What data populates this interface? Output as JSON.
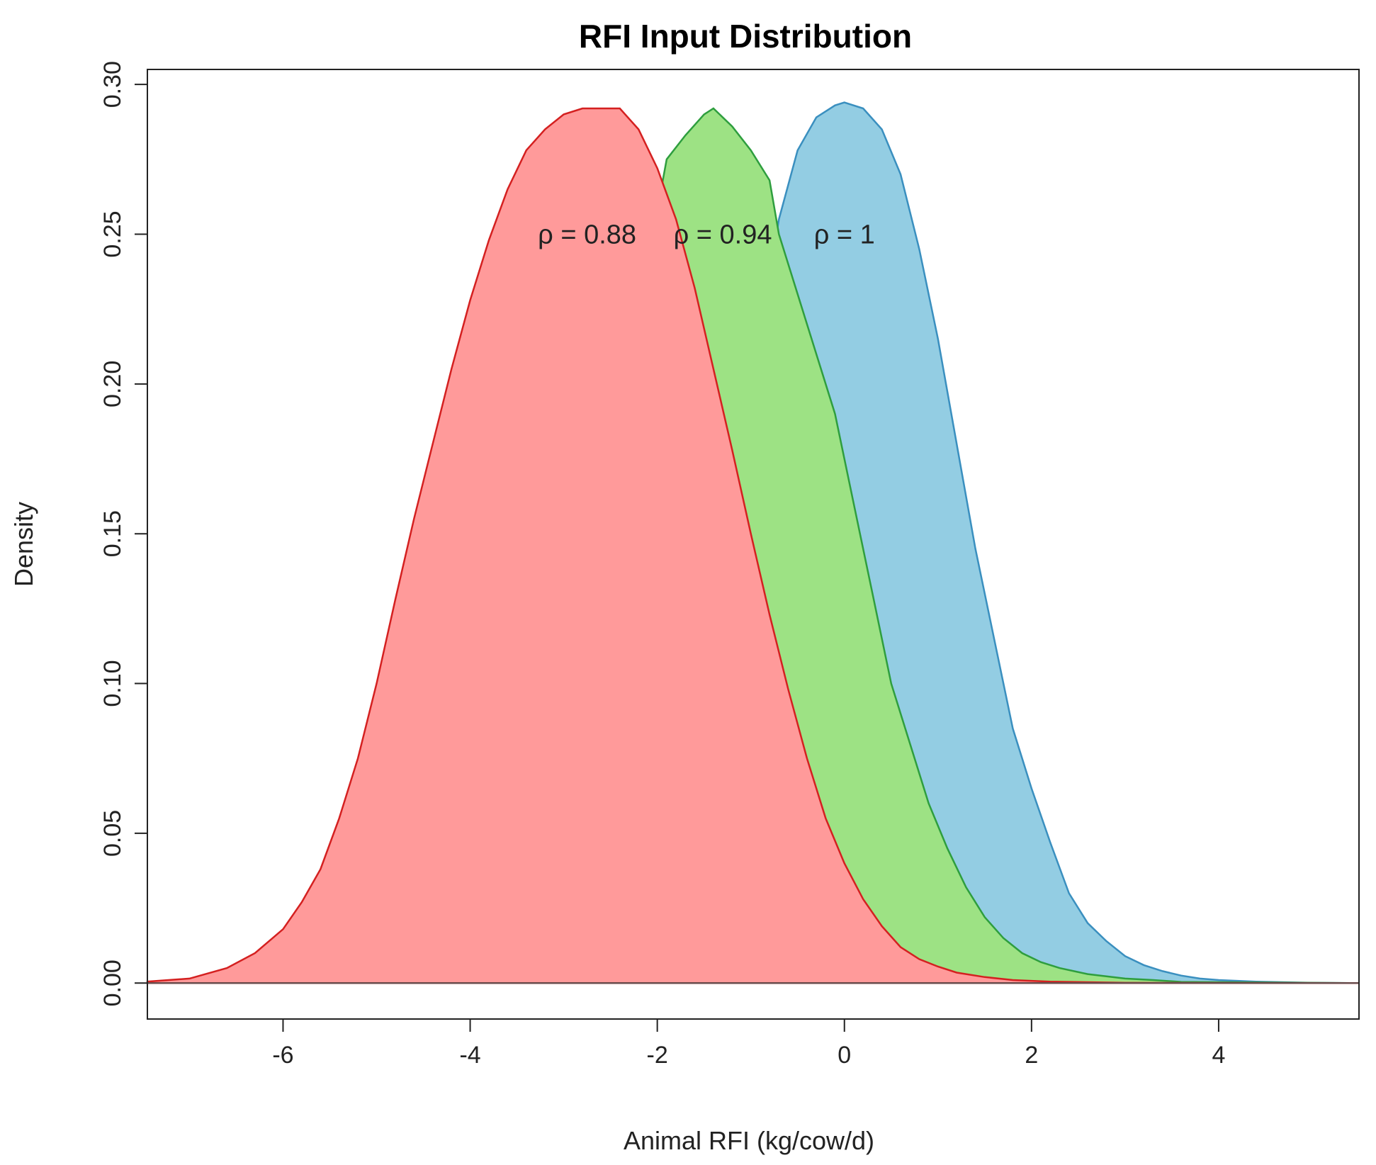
{
  "chart_data": {
    "type": "area",
    "title": "RFI Input Distribution",
    "xlabel": "Animal RFI (kg/cow/d)",
    "ylabel": "Density",
    "xlim": [
      -7.45,
      5.5
    ],
    "ylim": [
      -0.012,
      0.305
    ],
    "xticks": [
      -6,
      -4,
      -2,
      0,
      2,
      4
    ],
    "xtick_labels": [
      "-6",
      "-4",
      "-2",
      "0",
      "2",
      "4"
    ],
    "yticks": [
      0.0,
      0.05,
      0.1,
      0.15,
      0.2,
      0.25,
      0.3
    ],
    "ytick_labels": [
      "0.00",
      "0.05",
      "0.10",
      "0.15",
      "0.20",
      "0.25",
      "0.30"
    ],
    "baseline": 0,
    "series": [
      {
        "name": "blue",
        "fill": "#93CDE3",
        "stroke": "#3A8FBF",
        "points": [
          [
            -7.45,
            0
          ],
          [
            -2,
            0
          ],
          [
            -0.7,
            0.255
          ],
          [
            -0.5,
            0.278
          ],
          [
            -0.3,
            0.289
          ],
          [
            -0.1,
            0.293
          ],
          [
            0,
            0.294
          ],
          [
            0.2,
            0.292
          ],
          [
            0.4,
            0.285
          ],
          [
            0.6,
            0.27
          ],
          [
            0.8,
            0.245
          ],
          [
            1.0,
            0.215
          ],
          [
            1.2,
            0.18
          ],
          [
            1.4,
            0.145
          ],
          [
            1.6,
            0.115
          ],
          [
            1.8,
            0.085
          ],
          [
            2.0,
            0.065
          ],
          [
            2.2,
            0.047
          ],
          [
            2.4,
            0.03
          ],
          [
            2.6,
            0.02
          ],
          [
            2.8,
            0.014
          ],
          [
            3.0,
            0.009
          ],
          [
            3.2,
            0.006
          ],
          [
            3.4,
            0.004
          ],
          [
            3.6,
            0.0025
          ],
          [
            3.8,
            0.0015
          ],
          [
            4.0,
            0.001
          ],
          [
            4.4,
            0.0005
          ],
          [
            5.0,
            0.0001
          ],
          [
            5.5,
            0
          ]
        ]
      },
      {
        "name": "green",
        "fill": "#9DE284",
        "stroke": "#2E9E3E",
        "points": [
          [
            -7.45,
            0
          ],
          [
            -3.5,
            0
          ],
          [
            -2.0,
            0.258
          ],
          [
            -1.9,
            0.275
          ],
          [
            -1.7,
            0.283
          ],
          [
            -1.5,
            0.29
          ],
          [
            -1.4,
            0.292
          ],
          [
            -1.2,
            0.286
          ],
          [
            -1.0,
            0.278
          ],
          [
            -0.8,
            0.268
          ],
          [
            -0.7,
            0.25
          ],
          [
            -0.5,
            0.23
          ],
          [
            -0.3,
            0.21
          ],
          [
            -0.1,
            0.19
          ],
          [
            0.1,
            0.16
          ],
          [
            0.3,
            0.13
          ],
          [
            0.5,
            0.1
          ],
          [
            0.7,
            0.08
          ],
          [
            0.9,
            0.06
          ],
          [
            1.1,
            0.045
          ],
          [
            1.3,
            0.032
          ],
          [
            1.5,
            0.022
          ],
          [
            1.7,
            0.015
          ],
          [
            1.9,
            0.01
          ],
          [
            2.1,
            0.007
          ],
          [
            2.3,
            0.005
          ],
          [
            2.6,
            0.003
          ],
          [
            3.0,
            0.0015
          ],
          [
            3.3,
            0.001
          ],
          [
            3.6,
            0.0004
          ],
          [
            5.5,
            0
          ]
        ]
      },
      {
        "name": "red",
        "fill": "#FF9A9A",
        "stroke": "#D42020",
        "points": [
          [
            -7.45,
            0.0005
          ],
          [
            -7.0,
            0.0015
          ],
          [
            -6.6,
            0.005
          ],
          [
            -6.3,
            0.01
          ],
          [
            -6.0,
            0.018
          ],
          [
            -5.8,
            0.027
          ],
          [
            -5.6,
            0.038
          ],
          [
            -5.4,
            0.055
          ],
          [
            -5.2,
            0.075
          ],
          [
            -5.0,
            0.1
          ],
          [
            -4.8,
            0.128
          ],
          [
            -4.6,
            0.155
          ],
          [
            -4.4,
            0.18
          ],
          [
            -4.2,
            0.205
          ],
          [
            -4.0,
            0.228
          ],
          [
            -3.8,
            0.248
          ],
          [
            -3.6,
            0.265
          ],
          [
            -3.4,
            0.278
          ],
          [
            -3.2,
            0.285
          ],
          [
            -3.0,
            0.29
          ],
          [
            -2.8,
            0.292
          ],
          [
            -2.6,
            0.292
          ],
          [
            -2.4,
            0.292
          ],
          [
            -2.2,
            0.285
          ],
          [
            -2.0,
            0.272
          ],
          [
            -1.8,
            0.255
          ],
          [
            -1.6,
            0.232
          ],
          [
            -1.4,
            0.205
          ],
          [
            -1.2,
            0.178
          ],
          [
            -1.0,
            0.15
          ],
          [
            -0.8,
            0.123
          ],
          [
            -0.6,
            0.098
          ],
          [
            -0.4,
            0.075
          ],
          [
            -0.2,
            0.055
          ],
          [
            0,
            0.04
          ],
          [
            0.2,
            0.028
          ],
          [
            0.4,
            0.019
          ],
          [
            0.6,
            0.012
          ],
          [
            0.8,
            0.008
          ],
          [
            1.0,
            0.0055
          ],
          [
            1.2,
            0.0035
          ],
          [
            1.5,
            0.002
          ],
          [
            1.8,
            0.001
          ],
          [
            2.2,
            0.0005
          ],
          [
            3.0,
            0.0001
          ],
          [
            5.5,
            0
          ]
        ]
      }
    ],
    "annotations": [
      {
        "text": "ρ = 0.88",
        "x": -2.75,
        "y": 0.25
      },
      {
        "text": "ρ = 0.94",
        "x": -1.3,
        "y": 0.25
      },
      {
        "text": "ρ = 1",
        "x": 0,
        "y": 0.25
      }
    ]
  }
}
